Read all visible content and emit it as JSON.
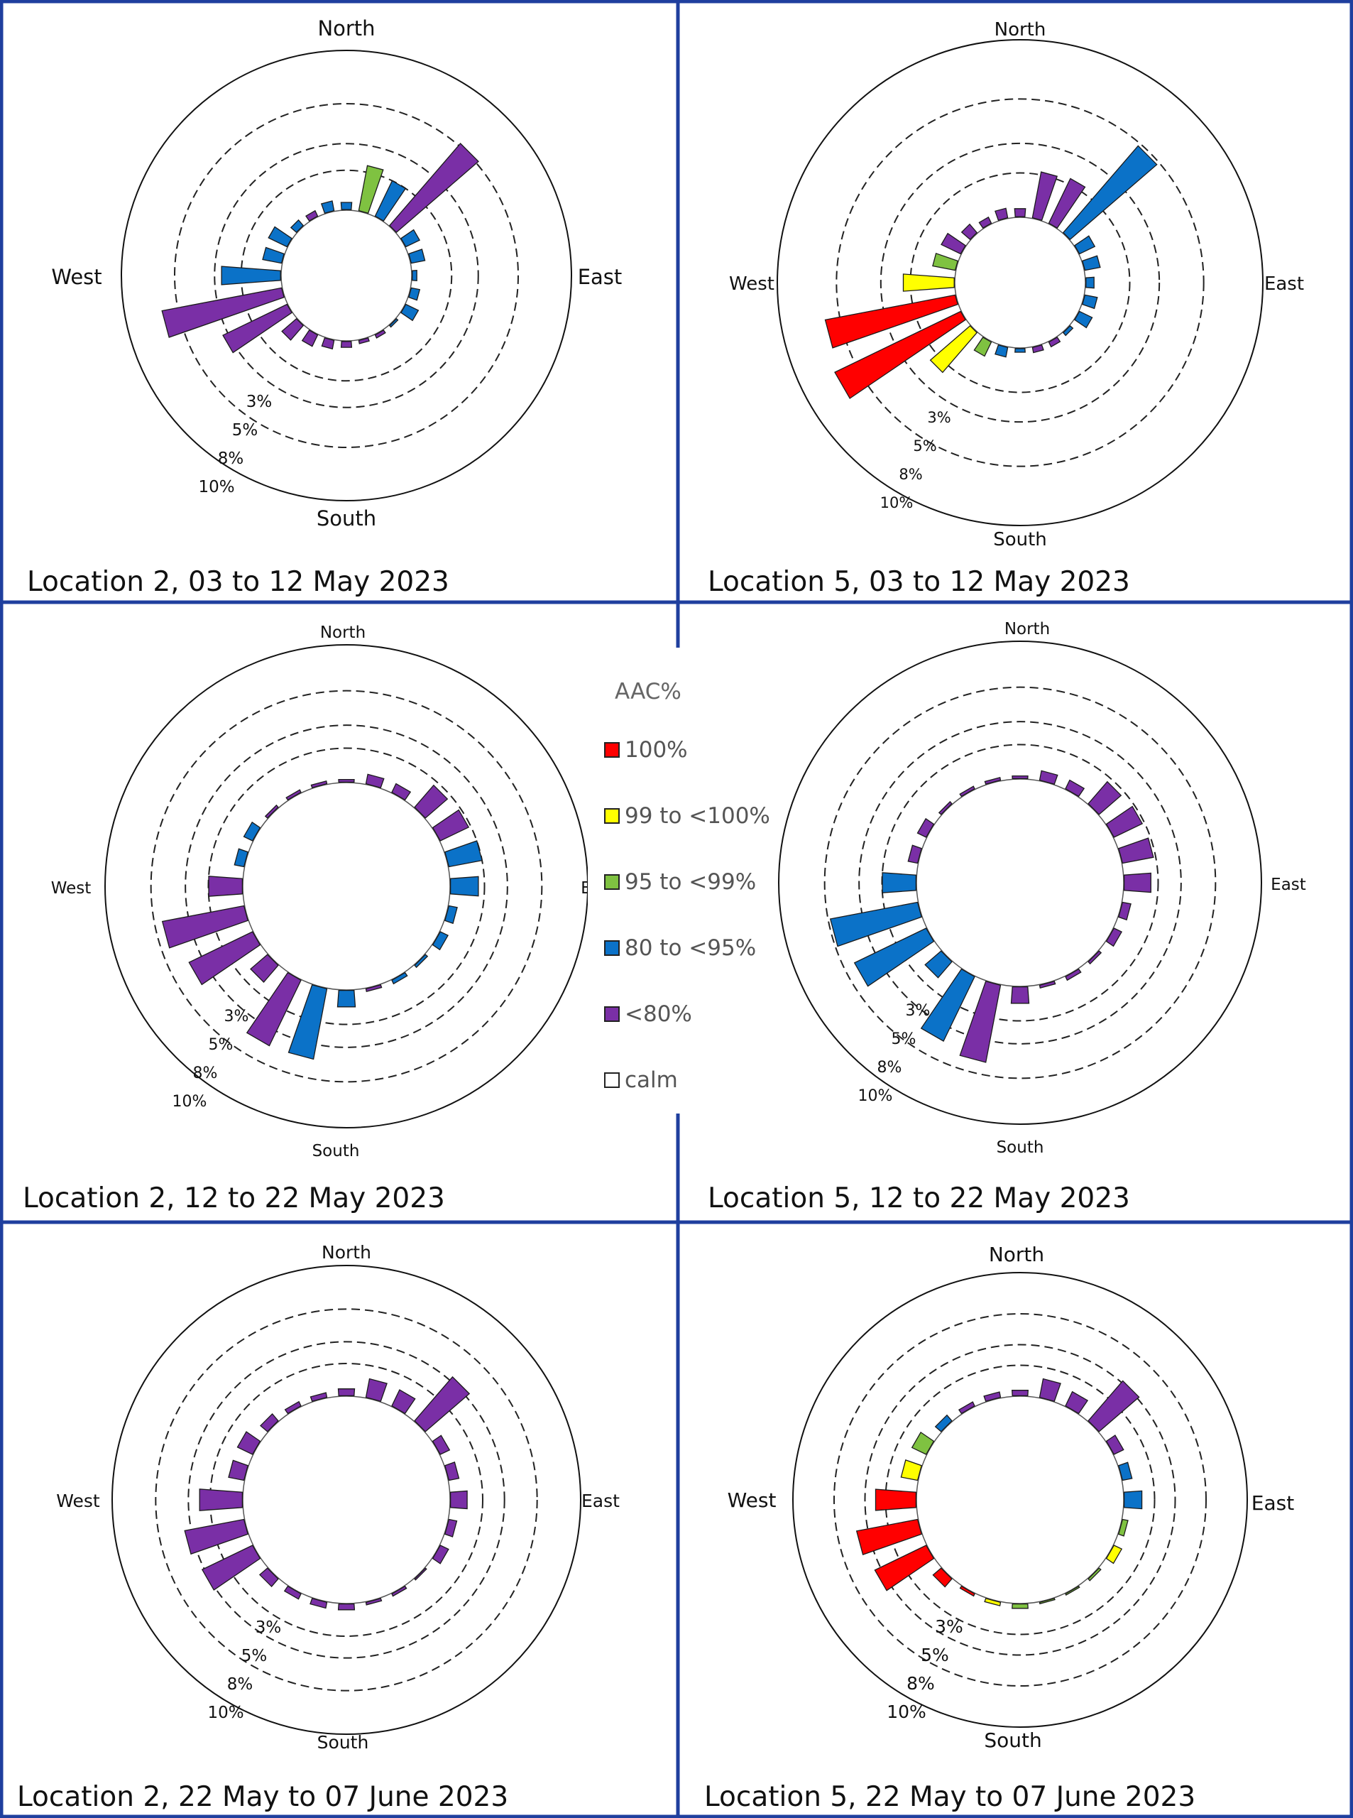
{
  "legend": {
    "title": "AAC%",
    "items": [
      {
        "key": "c100",
        "label": "100%",
        "color": "#ff0000"
      },
      {
        "key": "c99",
        "label": "99 to <100%",
        "color": "#ffff00"
      },
      {
        "key": "c95",
        "label": "95 to <99%",
        "color": "#7fc241"
      },
      {
        "key": "c80",
        "label": "80 to <95%",
        "color": "#0b72c8"
      },
      {
        "key": "clt80",
        "label": "<80%",
        "color": "#7a2fa6"
      },
      {
        "key": "calm",
        "label": "calm",
        "color": "#ffffff"
      }
    ]
  },
  "chart_data": [
    {
      "type": "polar-bar",
      "title": "Location 2, 03 to 12 May 2023",
      "directions": [
        "North",
        "East",
        "South",
        "West"
      ],
      "ring_labels": [
        "3%",
        "5%",
        "8%",
        "10%"
      ],
      "sectors_deg": [
        0,
        15,
        30,
        45,
        60,
        75,
        90,
        105,
        120,
        135,
        150,
        165,
        180,
        195,
        210,
        225,
        240,
        255,
        270,
        285,
        300,
        315,
        330,
        345
      ],
      "values": [
        0.6,
        3.5,
        3.0,
        8.2,
        1.2,
        1.1,
        0.4,
        0.7,
        1.1,
        0.2,
        0.3,
        0.3,
        0.5,
        0.7,
        1.0,
        1.5,
        5.4,
        9.2,
        4.5,
        1.5,
        1.6,
        0.6,
        0.5,
        0.8
      ],
      "classes": [
        "c80",
        "c95",
        "c80",
        "clt80",
        "c80",
        "c80",
        "c80",
        "c80",
        "c80",
        "c80",
        "clt80",
        "clt80",
        "clt80",
        "clt80",
        "clt80",
        "clt80",
        "clt80",
        "clt80",
        "c80",
        "c80",
        "c80",
        "c80",
        "clt80",
        "c80"
      ]
    },
    {
      "type": "polar-bar",
      "title": "Location 5, 03 to 12 May 2023",
      "directions": [
        "North",
        "East",
        "South",
        "West"
      ],
      "ring_labels": [
        "3%",
        "5%",
        "8%",
        "10%"
      ],
      "sectors_deg": [
        0,
        15,
        30,
        45,
        60,
        75,
        90,
        105,
        120,
        135,
        150,
        165,
        180,
        195,
        210,
        225,
        240,
        255,
        270,
        285,
        300,
        315,
        330,
        345
      ],
      "values": [
        0.6,
        3.2,
        3.4,
        7.8,
        1.2,
        1.1,
        0.6,
        0.9,
        1.0,
        0.3,
        0.4,
        0.4,
        0.3,
        0.7,
        1.1,
        3.6,
        9.5,
        9.0,
        3.5,
        1.6,
        1.5,
        0.8,
        0.5,
        0.7
      ],
      "classes": [
        "clt80",
        "clt80",
        "clt80",
        "c80",
        "c80",
        "c80",
        "c80",
        "c80",
        "c80",
        "c80",
        "clt80",
        "clt80",
        "c80",
        "c80",
        "c95",
        "c99",
        "c100",
        "c100",
        "c99",
        "c95",
        "clt80",
        "clt80",
        "clt80",
        "clt80"
      ]
    },
    {
      "type": "polar-bar",
      "title": "Location 2, 12 to 22 May 2023",
      "directions": [
        "North",
        "East",
        "South",
        "West"
      ],
      "ring_labels": [
        "3%",
        "5%",
        "8%",
        "10%"
      ],
      "sectors_deg": [
        0,
        15,
        30,
        45,
        60,
        75,
        90,
        105,
        120,
        135,
        150,
        165,
        180,
        195,
        210,
        225,
        240,
        255,
        270,
        285,
        300,
        315,
        330,
        345
      ],
      "values": [
        0.3,
        0.9,
        0.9,
        2.6,
        2.8,
        3.0,
        2.5,
        0.8,
        0.8,
        0.3,
        0.4,
        0.3,
        1.5,
        6.3,
        6.4,
        2.0,
        6.2,
        7.3,
        3.0,
        0.9,
        0.9,
        0.3,
        0.3,
        0.3
      ],
      "classes": [
        "clt80",
        "clt80",
        "clt80",
        "clt80",
        "clt80",
        "c80",
        "c80",
        "c80",
        "c80",
        "c80",
        "c80",
        "clt80",
        "c80",
        "c80",
        "clt80",
        "clt80",
        "clt80",
        "clt80",
        "clt80",
        "c80",
        "c80",
        "clt80",
        "clt80",
        "clt80"
      ]
    },
    {
      "type": "polar-bar",
      "title": "Location 5, 12 to 22 May 2023",
      "directions": [
        "North",
        "East",
        "South",
        "West"
      ],
      "ring_labels": [
        "3%",
        "5%",
        "8%",
        "10%"
      ],
      "sectors_deg": [
        0,
        15,
        30,
        45,
        60,
        75,
        90,
        105,
        120,
        135,
        150,
        165,
        180,
        195,
        210,
        225,
        240,
        255,
        270,
        285,
        300,
        315,
        330,
        345
      ],
      "values": [
        0.3,
        0.9,
        0.9,
        2.6,
        2.8,
        2.8,
        2.4,
        0.8,
        0.8,
        0.3,
        0.4,
        0.3,
        1.5,
        6.9,
        6.3,
        1.9,
        7.0,
        7.8,
        3.0,
        0.9,
        0.9,
        0.3,
        0.3,
        0.3
      ],
      "classes": [
        "clt80",
        "clt80",
        "clt80",
        "clt80",
        "clt80",
        "clt80",
        "clt80",
        "clt80",
        "clt80",
        "clt80",
        "clt80",
        "clt80",
        "clt80",
        "clt80",
        "c80",
        "c80",
        "c80",
        "c80",
        "c80",
        "clt80",
        "clt80",
        "clt80",
        "clt80",
        "clt80"
      ]
    },
    {
      "type": "polar-bar",
      "title": "Location 2, 22 May to 07 June 2023",
      "directions": [
        "North",
        "East",
        "South",
        "West"
      ],
      "ring_labels": [
        "3%",
        "5%",
        "8%",
        "10%"
      ],
      "sectors_deg": [
        0,
        15,
        30,
        45,
        60,
        75,
        90,
        105,
        120,
        135,
        150,
        165,
        180,
        195,
        210,
        225,
        240,
        255,
        270,
        285,
        300,
        315,
        330,
        345
      ],
      "values": [
        0.7,
        1.8,
        1.7,
        5.4,
        1.0,
        1.0,
        1.6,
        0.8,
        0.9,
        0.2,
        0.3,
        0.3,
        0.6,
        0.6,
        0.6,
        1.0,
        5.2,
        5.6,
        4.0,
        1.5,
        1.6,
        0.9,
        0.5,
        0.5
      ],
      "classes": [
        "clt80",
        "clt80",
        "clt80",
        "clt80",
        "clt80",
        "clt80",
        "clt80",
        "clt80",
        "clt80",
        "clt80",
        "clt80",
        "clt80",
        "clt80",
        "clt80",
        "clt80",
        "clt80",
        "clt80",
        "clt80",
        "clt80",
        "clt80",
        "clt80",
        "clt80",
        "clt80",
        "clt80"
      ]
    },
    {
      "type": "polar-bar",
      "title": "Location 5, 22 May to 07 June 2023",
      "directions": [
        "North",
        "East",
        "South",
        "West"
      ],
      "ring_labels": [
        "3%",
        "5%",
        "8%",
        "10%"
      ],
      "sectors_deg": [
        0,
        15,
        30,
        45,
        60,
        75,
        90,
        105,
        120,
        135,
        150,
        165,
        180,
        195,
        210,
        225,
        240,
        255,
        270,
        285,
        300,
        315,
        330,
        345
      ],
      "values": [
        0.6,
        1.9,
        1.6,
        5.2,
        1.1,
        1.0,
        1.8,
        0.6,
        0.9,
        0.3,
        0.2,
        0.2,
        0.5,
        0.4,
        0.3,
        1.1,
        5.6,
        6.1,
        4.0,
        1.7,
        1.6,
        0.8,
        0.5,
        0.6
      ],
      "classes": [
        "clt80",
        "clt80",
        "clt80",
        "clt80",
        "clt80",
        "c80",
        "c80",
        "c95",
        "c99",
        "c95",
        "c95",
        "c95",
        "c95",
        "c99",
        "c100",
        "c100",
        "c100",
        "c100",
        "c100",
        "c99",
        "c95",
        "c80",
        "clt80",
        "clt80"
      ]
    }
  ]
}
